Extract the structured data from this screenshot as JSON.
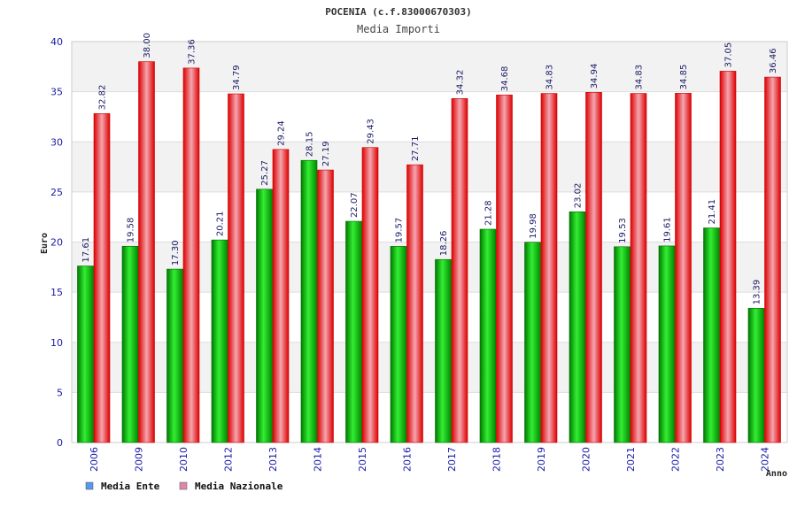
{
  "chart_data": {
    "type": "bar",
    "title": "POCENIA (c.f.83000670303)",
    "subtitle": "Media Importi",
    "xlabel": "Anno",
    "ylabel": "Euro",
    "ylim": [
      0,
      40
    ],
    "yticks": [
      0,
      5,
      10,
      15,
      20,
      25,
      30,
      35,
      40
    ],
    "categories": [
      "2006",
      "2009",
      "2010",
      "2012",
      "2013",
      "2014",
      "2015",
      "2016",
      "2017",
      "2018",
      "2019",
      "2020",
      "2021",
      "2022",
      "2023",
      "2024"
    ],
    "series": [
      {
        "name": "Media Ente",
        "values": [
          17.61,
          19.58,
          17.3,
          20.21,
          25.27,
          28.15,
          22.07,
          19.57,
          18.26,
          21.28,
          19.98,
          23.02,
          19.53,
          19.61,
          21.41,
          13.39
        ],
        "labels": [
          "17.61",
          "19.58",
          "17.30",
          "20.21",
          "25.27",
          "28.15",
          "22.07",
          "19.57",
          "18.26",
          "21.28",
          "19.98",
          "23.02",
          "19.53",
          "19.61",
          "21.41",
          "13.39"
        ],
        "color": "#00bb00",
        "legend_color": "#5599ee"
      },
      {
        "name": "Media Nazionale",
        "values": [
          32.82,
          38.0,
          37.36,
          34.79,
          29.24,
          27.19,
          29.43,
          27.71,
          34.32,
          34.68,
          34.83,
          34.94,
          34.83,
          34.85,
          37.05,
          36.46
        ],
        "labels": [
          "32.82",
          "38.00",
          "37.36",
          "34.79",
          "29.24",
          "27.19",
          "29.43",
          "27.71",
          "34.32",
          "34.68",
          "34.83",
          "34.94",
          "34.83",
          "34.85",
          "37.05",
          "36.46"
        ],
        "color": "#ee1111",
        "legend_color": "#dd88aa"
      }
    ],
    "grid": true,
    "legend_position": "bottom-left"
  }
}
